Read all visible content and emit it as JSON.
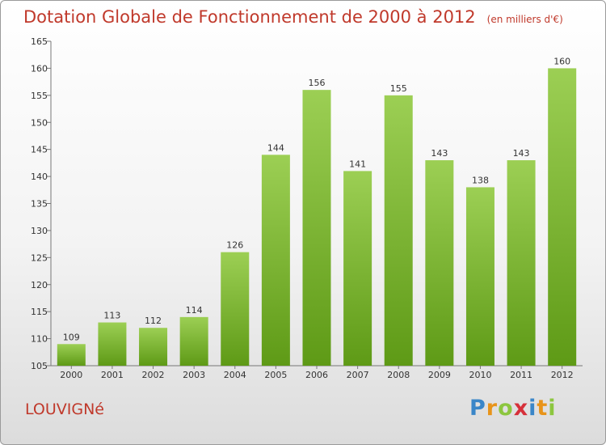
{
  "header": {
    "title": "Dotation Globale de Fonctionnement de 2000 à 2012",
    "unit": "(en milliers d'€)"
  },
  "footer": {
    "commune": "LOUVIGNé",
    "logo_text": "Proxiti",
    "logo_letters": [
      {
        "ch": "P",
        "color": "#3a86c8"
      },
      {
        "ch": "r",
        "color": "#e8941a"
      },
      {
        "ch": "o",
        "color": "#8cc63f"
      },
      {
        "ch": "x",
        "color": "#d6303a"
      },
      {
        "ch": "i",
        "color": "#3a86c8"
      },
      {
        "ch": "t",
        "color": "#e8941a"
      },
      {
        "ch": "i",
        "color": "#8cc63f"
      }
    ]
  },
  "colors": {
    "bar_top": "#9ccf54",
    "bar_bottom": "#5e9a16",
    "title": "#c0392b"
  },
  "chart_data": {
    "type": "bar",
    "categories": [
      "2000",
      "2001",
      "2002",
      "2003",
      "2004",
      "2005",
      "2006",
      "2007",
      "2008",
      "2009",
      "2010",
      "2011",
      "2012"
    ],
    "values": [
      109,
      113,
      112,
      114,
      126,
      144,
      156,
      141,
      155,
      143,
      138,
      143,
      160
    ],
    "ylim": [
      105,
      165
    ],
    "yticks": [
      105,
      110,
      115,
      120,
      125,
      130,
      135,
      140,
      145,
      150,
      155,
      160,
      165
    ],
    "grid": false,
    "xlabel": "",
    "ylabel": ""
  }
}
